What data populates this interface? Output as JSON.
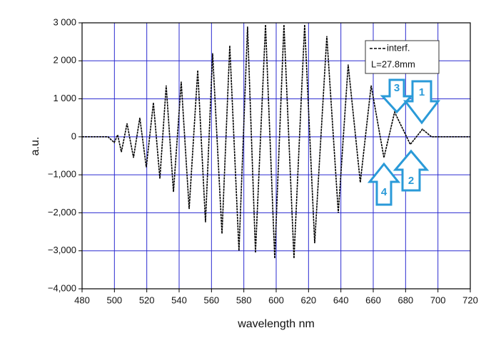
{
  "chart_data": {
    "type": "line",
    "x_label": "wavelength nm",
    "y_label": "a.u.",
    "x": [
      480,
      490,
      496,
      499.9,
      502,
      504.3,
      507.8,
      511.8,
      515.7,
      519.7,
      524.1,
      528.1,
      532,
      536.5,
      541.3,
      546.2,
      551.5,
      556.3,
      560.7,
      566.5,
      571.3,
      577,
      582.3,
      587.2,
      593.4,
      599.1,
      604.8,
      611,
      617.6,
      623.8,
      631.3,
      638.4,
      644.5,
      652,
      658.7,
      666.6,
      673.2,
      682.9,
      690.4,
      696,
      705,
      720
    ],
    "series": [
      {
        "name": "interf.",
        "color": "#000000",
        "values": [
          0,
          0,
          0,
          -150,
          50,
          -400,
          350,
          -550,
          500,
          -800,
          900,
          -1100,
          1350,
          -1450,
          1450,
          -1900,
          1750,
          -2250,
          2200,
          -2550,
          2400,
          -3000,
          2900,
          -3050,
          2950,
          -3200,
          2950,
          -3200,
          2950,
          -2800,
          2650,
          -2000,
          1900,
          -1200,
          1350,
          -550,
          650,
          -200,
          200,
          0,
          0,
          0
        ]
      }
    ],
    "legend_note": "L=27.8mm",
    "annotations": [
      "1",
      "2",
      "3",
      "4"
    ],
    "xlim": [
      480,
      720
    ],
    "xticks": [
      480,
      500,
      520,
      540,
      560,
      580,
      600,
      620,
      640,
      660,
      680,
      700,
      720
    ],
    "ylim": [
      -4000,
      3000
    ],
    "yticks": [
      {
        "value": -4000,
        "label": "−4,000"
      },
      {
        "value": -3000,
        "label": "−3,000"
      },
      {
        "value": -2000,
        "label": "−2,000"
      },
      {
        "value": -1000,
        "label": "−1,000"
      },
      0,
      {
        "value": 1000,
        "label": "1 000"
      },
      {
        "value": 2000,
        "label": "2 000"
      },
      {
        "value": 3000,
        "label": "3 000"
      }
    ],
    "grid": true,
    "grid_color": "#2b2bd0"
  }
}
